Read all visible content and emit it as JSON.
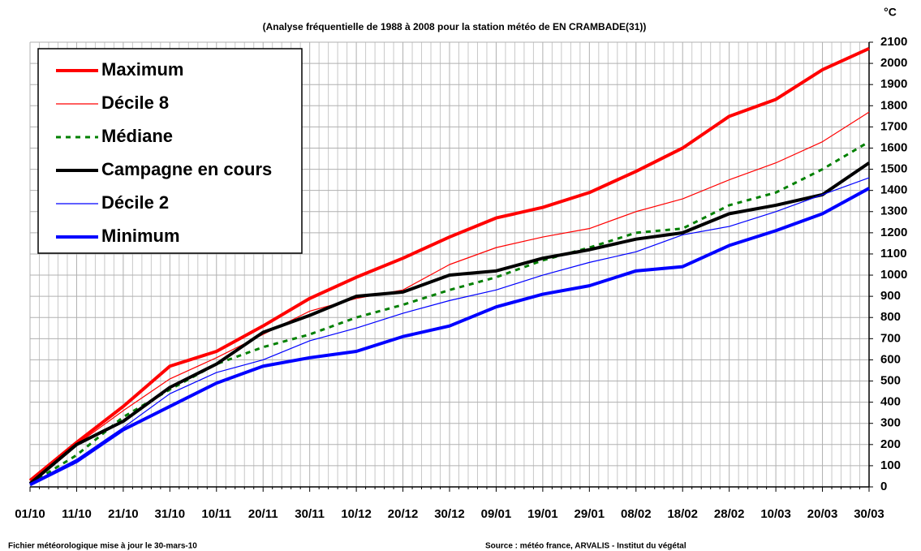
{
  "chart_data": {
    "type": "line",
    "subtitle": "(Analyse fréquentielle de 1988 à 2008 pour la station météo de EN CRAMBADE(31))",
    "y_unit": "°C",
    "footer_left": "Fichier météorologique mise à jour le 30-mars-10",
    "footer_right": "Source : météo france, ARVALIS - Institut du végétal",
    "categories": [
      "01/10",
      "11/10",
      "21/10",
      "31/10",
      "10/11",
      "20/11",
      "30/11",
      "10/12",
      "20/12",
      "30/12",
      "09/01",
      "19/01",
      "29/01",
      "08/02",
      "18/02",
      "28/02",
      "10/03",
      "20/03",
      "30/03"
    ],
    "ylim": [
      0,
      2100
    ],
    "yticks": [
      0,
      100,
      200,
      300,
      400,
      500,
      600,
      700,
      800,
      900,
      1000,
      1100,
      1200,
      1300,
      1400,
      1500,
      1600,
      1700,
      1800,
      1900,
      2000,
      2100
    ],
    "grid": true,
    "legend": "upper left",
    "series": [
      {
        "name": "Maximum",
        "color": "#ff0000",
        "width": 4,
        "dash": "solid",
        "values": [
          30,
          210,
          380,
          570,
          640,
          760,
          890,
          990,
          1080,
          1180,
          1270,
          1320,
          1390,
          1490,
          1600,
          1750,
          1830,
          1970,
          2070
        ]
      },
      {
        "name": "Décile 8",
        "color": "#ff0000",
        "width": 1.2,
        "dash": "solid",
        "values": [
          20,
          200,
          360,
          510,
          610,
          720,
          830,
          890,
          930,
          1050,
          1130,
          1180,
          1220,
          1300,
          1360,
          1450,
          1530,
          1630,
          1770
        ]
      },
      {
        "name": "Médiane",
        "color": "#008000",
        "width": 3,
        "dash": "dashed",
        "values": [
          15,
          150,
          330,
          460,
          580,
          660,
          720,
          800,
          860,
          930,
          990,
          1070,
          1130,
          1200,
          1220,
          1330,
          1390,
          1500,
          1630
        ]
      },
      {
        "name": "Campagne en cours",
        "color": "#000000",
        "width": 4,
        "dash": "solid",
        "values": [
          15,
          200,
          310,
          470,
          580,
          730,
          810,
          900,
          920,
          1000,
          1020,
          1080,
          1120,
          1170,
          1200,
          1290,
          1330,
          1380,
          1530
        ]
      },
      {
        "name": "Décile 2",
        "color": "#0000ff",
        "width": 1.2,
        "dash": "solid",
        "values": [
          15,
          130,
          280,
          440,
          540,
          600,
          690,
          750,
          820,
          880,
          930,
          1000,
          1060,
          1110,
          1190,
          1230,
          1300,
          1380,
          1460
        ]
      },
      {
        "name": "Minimum",
        "color": "#0000ff",
        "width": 4,
        "dash": "solid",
        "values": [
          10,
          120,
          270,
          380,
          490,
          570,
          610,
          640,
          710,
          760,
          850,
          910,
          950,
          1020,
          1040,
          1140,
          1210,
          1290,
          1410
        ]
      }
    ]
  }
}
